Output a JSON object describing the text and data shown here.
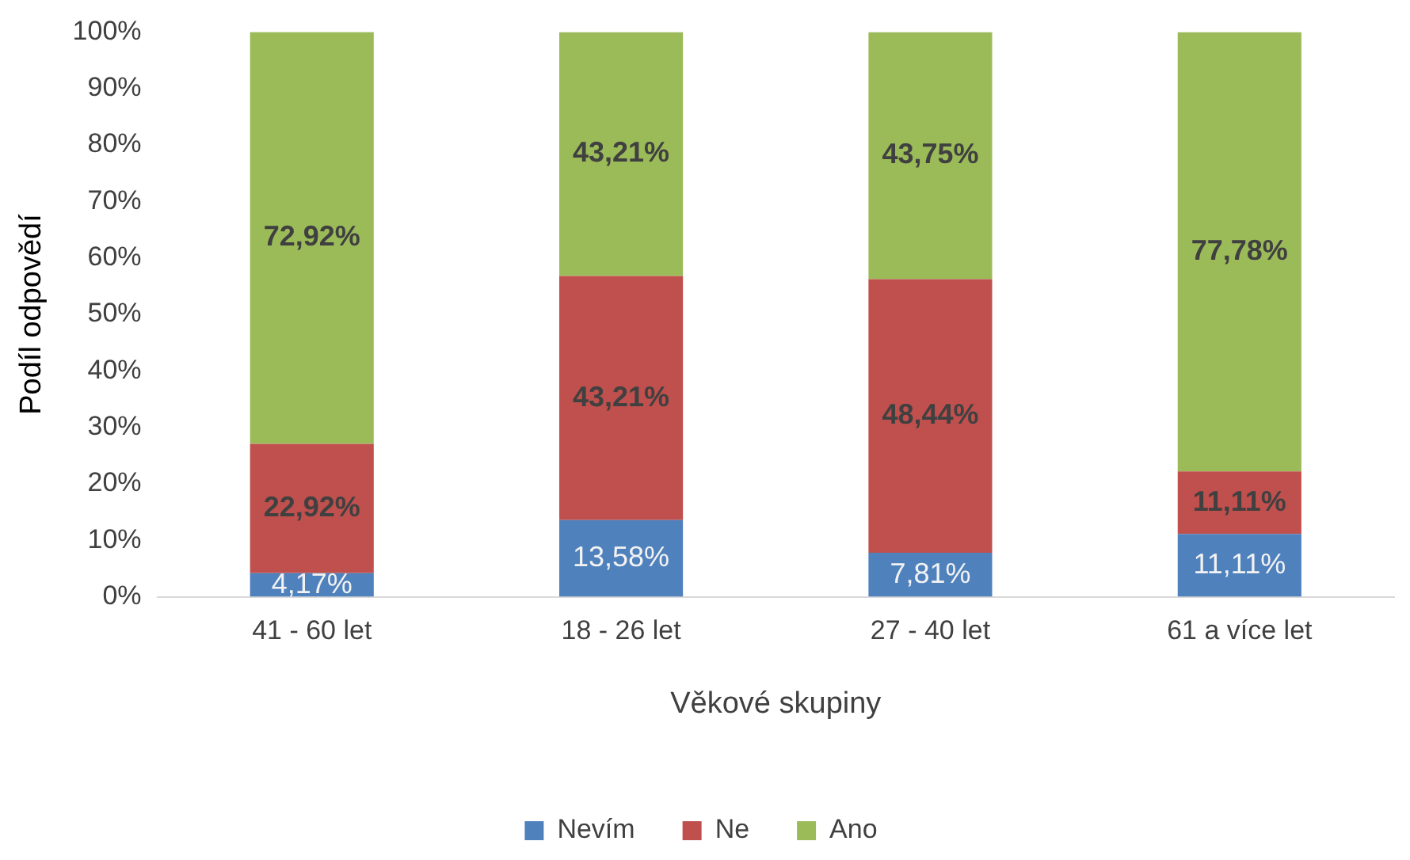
{
  "chart_data": {
    "type": "bar",
    "stacked": true,
    "xlabel": "Věkové skupiny",
    "ylabel": "Podíl odpovědí",
    "categories": [
      "41 - 60 let",
      "18 - 26 let",
      "27 - 40 let",
      "61 a více let"
    ],
    "series": [
      {
        "name": "Nevím",
        "color": "#4f81bd",
        "values": [
          4.17,
          13.58,
          7.81,
          11.11
        ],
        "value_labels": [
          "4,17%",
          "13,58%",
          "7,81%",
          "11,11%"
        ]
      },
      {
        "name": "Ne",
        "color": "#c0504d",
        "values": [
          22.92,
          43.21,
          48.44,
          11.11
        ],
        "value_labels": [
          "22,92%",
          "43,21%",
          "48,44%",
          "11,11%"
        ]
      },
      {
        "name": "Ano",
        "color": "#9bbb59",
        "values": [
          72.92,
          43.21,
          43.75,
          77.78
        ],
        "value_labels": [
          "72,92%",
          "43,21%",
          "43,75%",
          "77,78%"
        ]
      }
    ],
    "ylim": [
      0,
      100
    ],
    "yticks": [
      {
        "value": 0,
        "label": "0%"
      },
      {
        "value": 10,
        "label": "10%"
      },
      {
        "value": 20,
        "label": "20%"
      },
      {
        "value": 30,
        "label": "30%"
      },
      {
        "value": 40,
        "label": "40%"
      },
      {
        "value": 50,
        "label": "50%"
      },
      {
        "value": 60,
        "label": "60%"
      },
      {
        "value": 70,
        "label": "70%"
      },
      {
        "value": 80,
        "label": "80%"
      },
      {
        "value": 90,
        "label": "90%"
      },
      {
        "value": 100,
        "label": "100%"
      }
    ],
    "grid": false,
    "legend": "bottom"
  }
}
